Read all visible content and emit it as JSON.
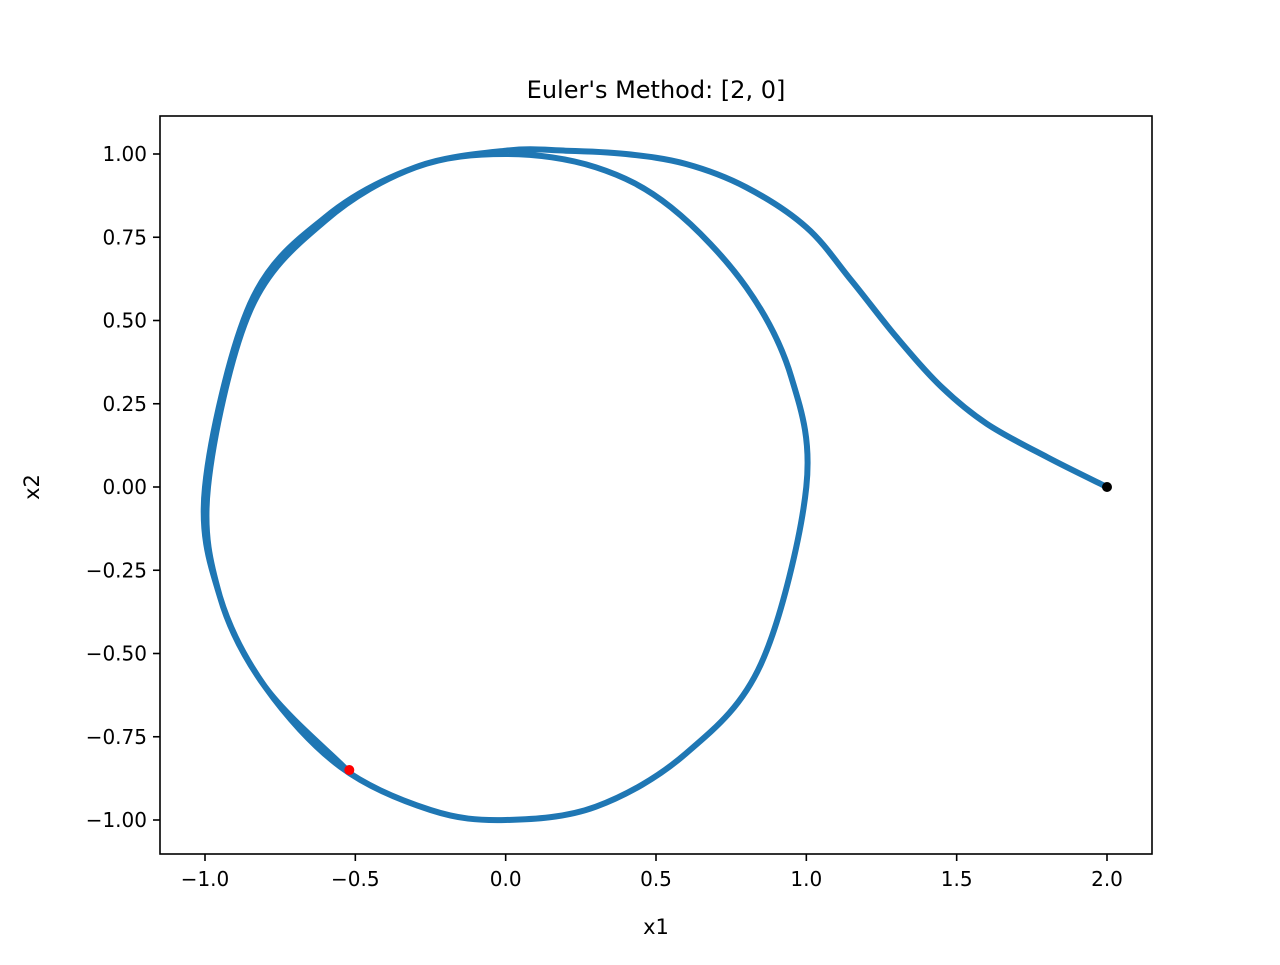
{
  "chart_data": {
    "type": "line",
    "title": "Euler's Method: [2, 0]",
    "xlabel": "x1",
    "ylabel": "x2",
    "xlim": [
      -1.15,
      2.15
    ],
    "ylim": [
      -1.1,
      1.12
    ],
    "grid": false,
    "xticks": [
      -1.0,
      -0.5,
      0.0,
      0.5,
      1.0,
      1.5,
      2.0
    ],
    "xtick_labels": [
      "−1.0",
      "−0.5",
      "0.0",
      "0.5",
      "1.0",
      "1.5",
      "2.0"
    ],
    "yticks": [
      1.0,
      0.75,
      0.5,
      0.25,
      0.0,
      -0.25,
      -0.5,
      -0.75,
      -1.0
    ],
    "ytick_labels": [
      "1.00",
      "0.75",
      "0.50",
      "0.25",
      "0.00",
      "−0.25",
      "−0.50",
      "−0.75",
      "−1.00"
    ],
    "series": [
      {
        "color": "#1f77b4",
        "x": [
          2.0,
          1.8,
          1.6,
          1.45,
          1.3,
          1.15,
          1.0,
          0.8,
          0.6,
          0.4,
          0.2,
          0.0,
          -0.3,
          -0.6,
          -0.85,
          -1.0,
          -0.95,
          -0.8,
          -0.55,
          -0.25,
          0.0,
          0.3,
          0.6,
          0.85,
          1.0,
          0.95,
          0.8,
          0.55,
          0.3,
          0.0,
          -0.3,
          -0.6,
          -0.85,
          -0.99,
          -0.95,
          -0.8,
          -0.55,
          -0.52
        ],
        "y": [
          0.0,
          0.09,
          0.19,
          0.3,
          0.45,
          0.62,
          0.78,
          0.9,
          0.97,
          1.0,
          1.01,
          1.01,
          0.96,
          0.81,
          0.55,
          0.0,
          -0.33,
          -0.6,
          -0.84,
          -0.97,
          -1.0,
          -0.96,
          -0.8,
          -0.53,
          0.0,
          0.33,
          0.6,
          0.84,
          0.96,
          1.0,
          0.96,
          0.8,
          0.53,
          0.0,
          -0.33,
          -0.6,
          -0.83,
          -0.85
        ]
      }
    ],
    "markers": [
      {
        "x": 2.0,
        "y": 0.0,
        "color": "#000000"
      },
      {
        "x": -0.52,
        "y": -0.85,
        "color": "#ff0000"
      }
    ]
  }
}
